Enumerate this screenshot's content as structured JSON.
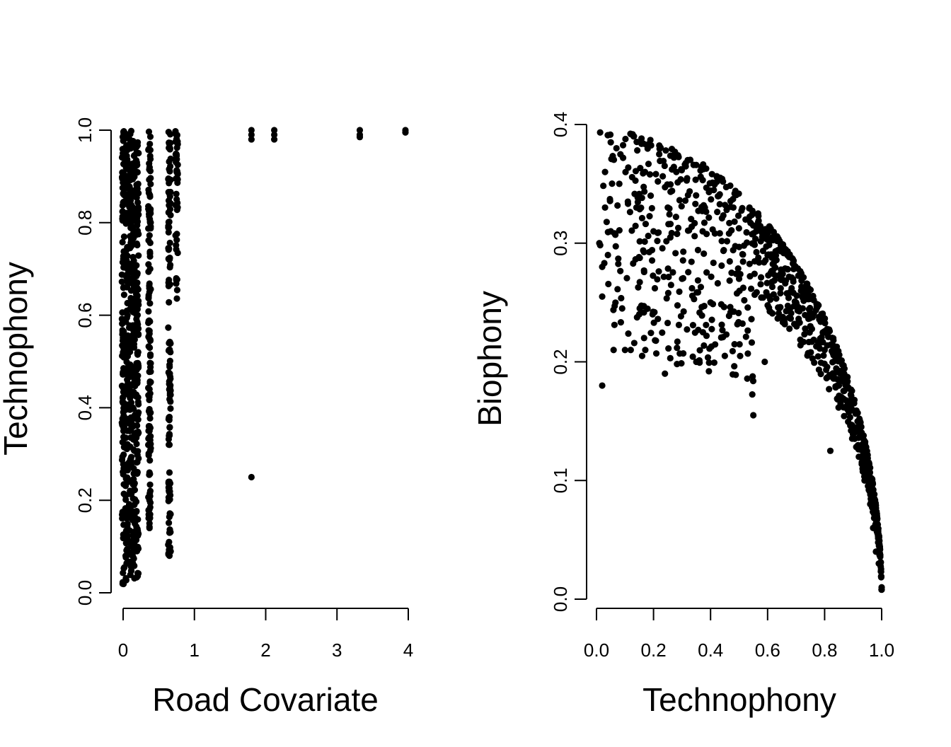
{
  "chart_data": [
    {
      "type": "scatter",
      "title": "",
      "xlabel": "Road Covariate",
      "ylabel": "Technophony",
      "xlim": [
        0,
        4
      ],
      "ylim": [
        0,
        1
      ],
      "xticks": [
        "0",
        "1",
        "2",
        "3",
        "4"
      ],
      "yticks": [
        "0.0",
        "0.2",
        "0.4",
        "0.6",
        "0.8",
        "1.0"
      ],
      "grid": false,
      "legend": "none",
      "point_color": "#000000",
      "columns": [
        {
          "x": 0.0,
          "y_min": 0.01,
          "y_max": 1.0
        },
        {
          "x": 0.05,
          "y_min": 0.02,
          "y_max": 1.0
        },
        {
          "x": 0.1,
          "y_min": 0.03,
          "y_max": 1.0
        },
        {
          "x": 0.15,
          "y_min": 0.03,
          "y_max": 1.0
        },
        {
          "x": 0.2,
          "y_min": 0.03,
          "y_max": 1.0
        },
        {
          "x": 0.37,
          "y_min": 0.14,
          "y_max": 1.0
        },
        {
          "x": 0.65,
          "y_min": 0.08,
          "y_max": 1.0
        },
        {
          "x": 0.75,
          "y_min": 0.52,
          "y_max": 1.0
        }
      ],
      "points": [
        {
          "x": 0.37,
          "y": 0.65
        },
        {
          "x": 0.37,
          "y": 0.56
        },
        {
          "x": 0.37,
          "y": 0.44
        },
        {
          "x": 0.37,
          "y": 0.36
        },
        {
          "x": 0.37,
          "y": 0.35
        },
        {
          "x": 0.37,
          "y": 0.26
        },
        {
          "x": 0.37,
          "y": 0.2
        },
        {
          "x": 0.37,
          "y": 0.15
        },
        {
          "x": 0.37,
          "y": 0.14
        },
        {
          "x": 0.65,
          "y": 0.38
        },
        {
          "x": 0.65,
          "y": 0.34
        },
        {
          "x": 0.65,
          "y": 0.32
        },
        {
          "x": 0.65,
          "y": 0.26
        },
        {
          "x": 0.65,
          "y": 0.24
        },
        {
          "x": 0.65,
          "y": 0.13
        },
        {
          "x": 0.65,
          "y": 0.09
        },
        {
          "x": 0.65,
          "y": 0.08
        },
        {
          "x": 1.8,
          "y": 1.0
        },
        {
          "x": 1.8,
          "y": 0.99
        },
        {
          "x": 1.8,
          "y": 0.98
        },
        {
          "x": 1.8,
          "y": 0.25
        },
        {
          "x": 2.12,
          "y": 1.0
        },
        {
          "x": 2.12,
          "y": 0.99
        },
        {
          "x": 2.12,
          "y": 0.98
        },
        {
          "x": 3.32,
          "y": 1.0
        },
        {
          "x": 3.32,
          "y": 0.99
        },
        {
          "x": 3.32,
          "y": 0.985
        },
        {
          "x": 3.96,
          "y": 1.0
        },
        {
          "x": 3.96,
          "y": 0.995
        }
      ]
    },
    {
      "type": "scatter",
      "title": "",
      "xlabel": "Technophony",
      "ylabel": "Biophony",
      "xlim": [
        0,
        1
      ],
      "ylim": [
        0,
        0.4
      ],
      "xticks": [
        "0.0",
        "0.2",
        "0.4",
        "0.6",
        "0.8",
        "1.0"
      ],
      "yticks": [
        "0.0",
        "0.1",
        "0.2",
        "0.3",
        "0.4"
      ],
      "grid": false,
      "legend": "none",
      "point_color": "#000000",
      "trend": "decreasing, biophony falls toward 0 as technophony approaches 1",
      "points": [
        {
          "x": 0.02,
          "y": 0.18
        },
        {
          "x": 0.01,
          "y": 0.3
        },
        {
          "x": 0.02,
          "y": 0.28
        },
        {
          "x": 0.02,
          "y": 0.255
        },
        {
          "x": 0.03,
          "y": 0.33
        },
        {
          "x": 0.03,
          "y": 0.36
        },
        {
          "x": 0.04,
          "y": 0.29
        },
        {
          "x": 0.05,
          "y": 0.385
        },
        {
          "x": 0.05,
          "y": 0.31
        },
        {
          "x": 0.06,
          "y": 0.21
        },
        {
          "x": 0.07,
          "y": 0.38
        },
        {
          "x": 0.08,
          "y": 0.35
        },
        {
          "x": 0.09,
          "y": 0.245
        },
        {
          "x": 0.1,
          "y": 0.21
        },
        {
          "x": 0.11,
          "y": 0.335
        },
        {
          "x": 0.12,
          "y": 0.21
        },
        {
          "x": 0.13,
          "y": 0.39
        },
        {
          "x": 0.14,
          "y": 0.33
        },
        {
          "x": 0.15,
          "y": 0.24
        },
        {
          "x": 0.16,
          "y": 0.205
        },
        {
          "x": 0.17,
          "y": 0.36
        },
        {
          "x": 0.19,
          "y": 0.34
        },
        {
          "x": 0.2,
          "y": 0.31
        },
        {
          "x": 0.22,
          "y": 0.375
        },
        {
          "x": 0.24,
          "y": 0.19
        },
        {
          "x": 0.25,
          "y": 0.33
        },
        {
          "x": 0.28,
          "y": 0.36
        },
        {
          "x": 0.3,
          "y": 0.27
        },
        {
          "x": 0.32,
          "y": 0.37
        },
        {
          "x": 0.35,
          "y": 0.2
        },
        {
          "x": 0.38,
          "y": 0.33
        },
        {
          "x": 0.4,
          "y": 0.25
        },
        {
          "x": 0.43,
          "y": 0.355
        },
        {
          "x": 0.45,
          "y": 0.205
        },
        {
          "x": 0.48,
          "y": 0.33
        },
        {
          "x": 0.5,
          "y": 0.27
        },
        {
          "x": 0.55,
          "y": 0.155
        },
        {
          "x": 0.56,
          "y": 0.31
        },
        {
          "x": 0.59,
          "y": 0.2
        },
        {
          "x": 0.6,
          "y": 0.29
        },
        {
          "x": 0.65,
          "y": 0.27
        },
        {
          "x": 0.7,
          "y": 0.25
        },
        {
          "x": 0.75,
          "y": 0.23
        },
        {
          "x": 0.8,
          "y": 0.21
        },
        {
          "x": 0.82,
          "y": 0.125
        },
        {
          "x": 0.85,
          "y": 0.18
        },
        {
          "x": 0.88,
          "y": 0.16
        },
        {
          "x": 0.9,
          "y": 0.14
        },
        {
          "x": 0.92,
          "y": 0.12
        },
        {
          "x": 0.94,
          "y": 0.1
        },
        {
          "x": 0.96,
          "y": 0.08
        },
        {
          "x": 0.97,
          "y": 0.06
        },
        {
          "x": 0.98,
          "y": 0.04
        },
        {
          "x": 0.99,
          "y": 0.03
        },
        {
          "x": 1.0,
          "y": 0.01
        }
      ]
    }
  ]
}
